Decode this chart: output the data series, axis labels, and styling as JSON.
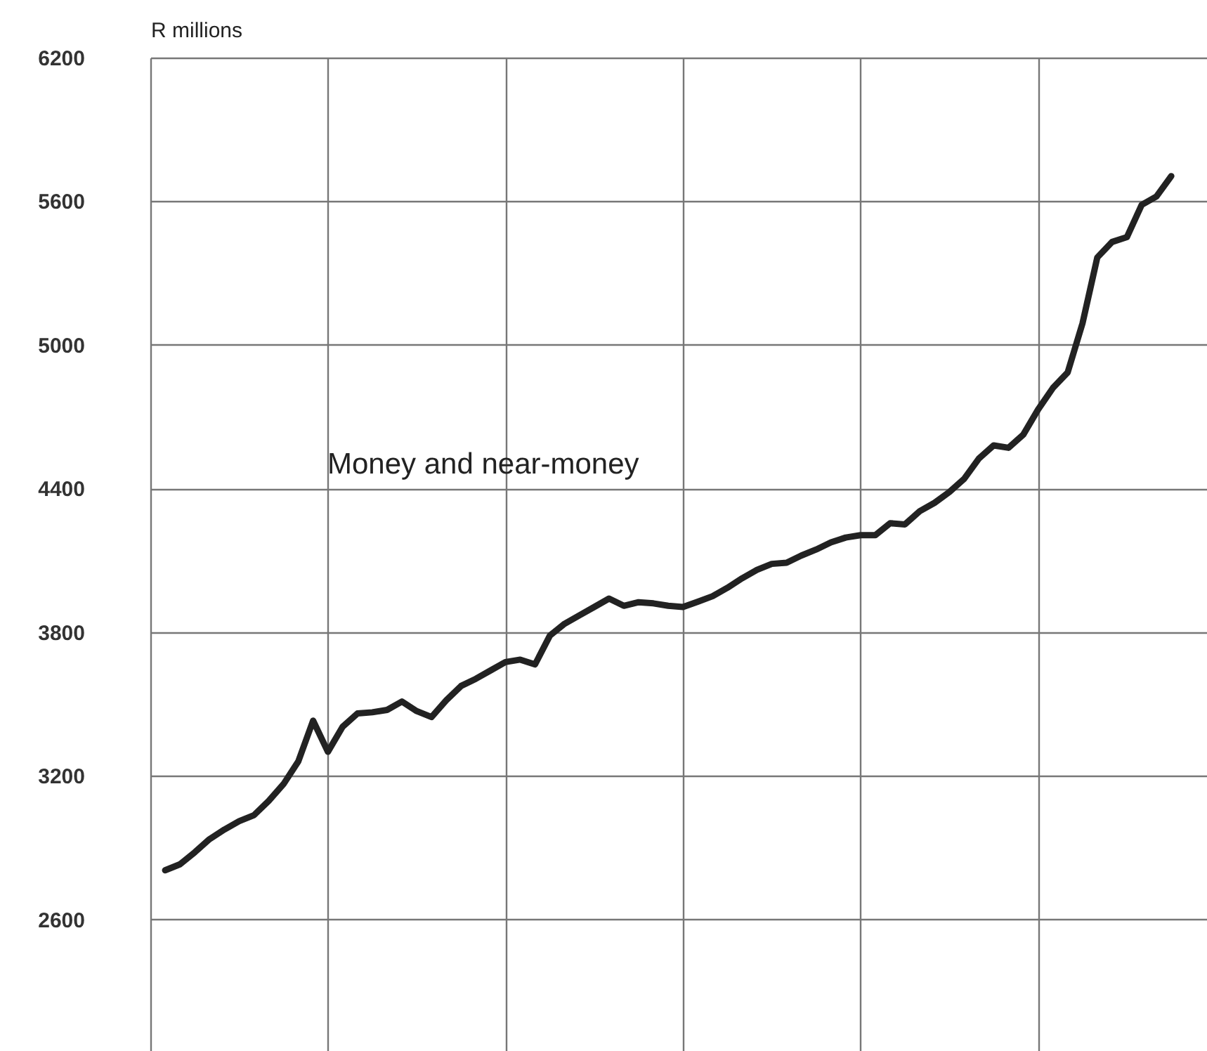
{
  "chart_data": {
    "type": "line",
    "ylabel": "R millions",
    "categories": [
      null,
      null,
      null,
      null,
      null,
      null,
      null,
      null,
      null,
      null,
      null,
      null,
      null,
      null,
      null,
      null,
      null,
      null,
      null,
      null,
      null,
      null,
      null,
      null,
      null,
      null,
      null,
      null,
      null,
      null,
      null,
      null,
      null,
      null,
      null,
      null,
      null,
      null,
      null,
      null,
      null,
      null,
      null,
      null,
      null,
      null,
      null,
      null,
      null,
      null,
      null,
      null,
      null,
      null,
      null,
      null,
      null,
      null,
      null,
      null,
      null,
      null,
      null,
      null,
      null,
      null,
      null,
      null,
      null
    ],
    "series": [
      {
        "name": "Money and near-money",
        "color": "#222222",
        "values": [
          2805,
          2830,
          2880,
          2935,
          2975,
          3010,
          3035,
          3095,
          3165,
          3260,
          3430,
          3300,
          3405,
          3460,
          3465,
          3475,
          3510,
          3470,
          3445,
          3515,
          3575,
          3605,
          3640,
          3675,
          3685,
          3665,
          3785,
          3835,
          3870,
          3905,
          3940,
          3910,
          3925,
          3920,
          3910,
          3905,
          3927,
          3950,
          3985,
          4025,
          4060,
          4085,
          4090,
          4120,
          4145,
          4175,
          4195,
          4205,
          4205,
          4255,
          4250,
          4305,
          4340,
          4385,
          4440,
          4525,
          4580,
          4570,
          4625,
          4730,
          4820,
          4885,
          5090,
          5365,
          5430,
          5450,
          5585,
          5620,
          5705
        ]
      }
    ],
    "ylim": [
      2050,
      6200
    ],
    "yticks": [
      2600,
      3200,
      3800,
      4400,
      5000,
      5600,
      6200
    ],
    "grid": true,
    "tick_labels": "y",
    "line_style": "solid"
  }
}
